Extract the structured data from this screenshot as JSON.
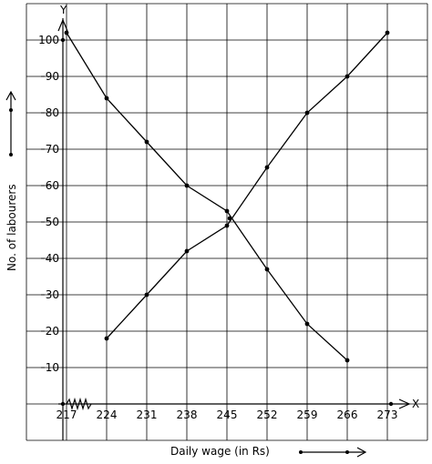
{
  "chart_data": {
    "type": "line",
    "xlabel": "Daily wage (in Rs)",
    "ylabel": "No. of labourers",
    "x_axis_letter": "X",
    "y_axis_letter": "Y",
    "x_ticks": [
      217,
      224,
      231,
      238,
      245,
      252,
      259,
      266,
      273
    ],
    "y_ticks": [
      10,
      20,
      30,
      40,
      50,
      60,
      70,
      80,
      90,
      100
    ],
    "y_tick_labels": [
      "10",
      "20",
      "30",
      "40",
      "50",
      "60",
      "70",
      "80",
      "90",
      "100"
    ],
    "xlim": [
      210,
      280
    ],
    "ylim": [
      -10,
      110
    ],
    "grid": true,
    "axis_break": true,
    "series": [
      {
        "x": [
          217,
          224,
          231,
          238,
          245,
          252,
          259,
          266
        ],
        "y": [
          102,
          84,
          72,
          60,
          53,
          37,
          22,
          12
        ]
      },
      {
        "x": [
          224,
          231,
          238,
          245,
          252,
          259,
          266,
          273
        ],
        "y": [
          18,
          30,
          42,
          49,
          65,
          80,
          90,
          102
        ]
      }
    ],
    "intersection": {
      "x": 245.5,
      "y": 51
    },
    "line_color": "#000000",
    "grid_color": "#000000"
  }
}
